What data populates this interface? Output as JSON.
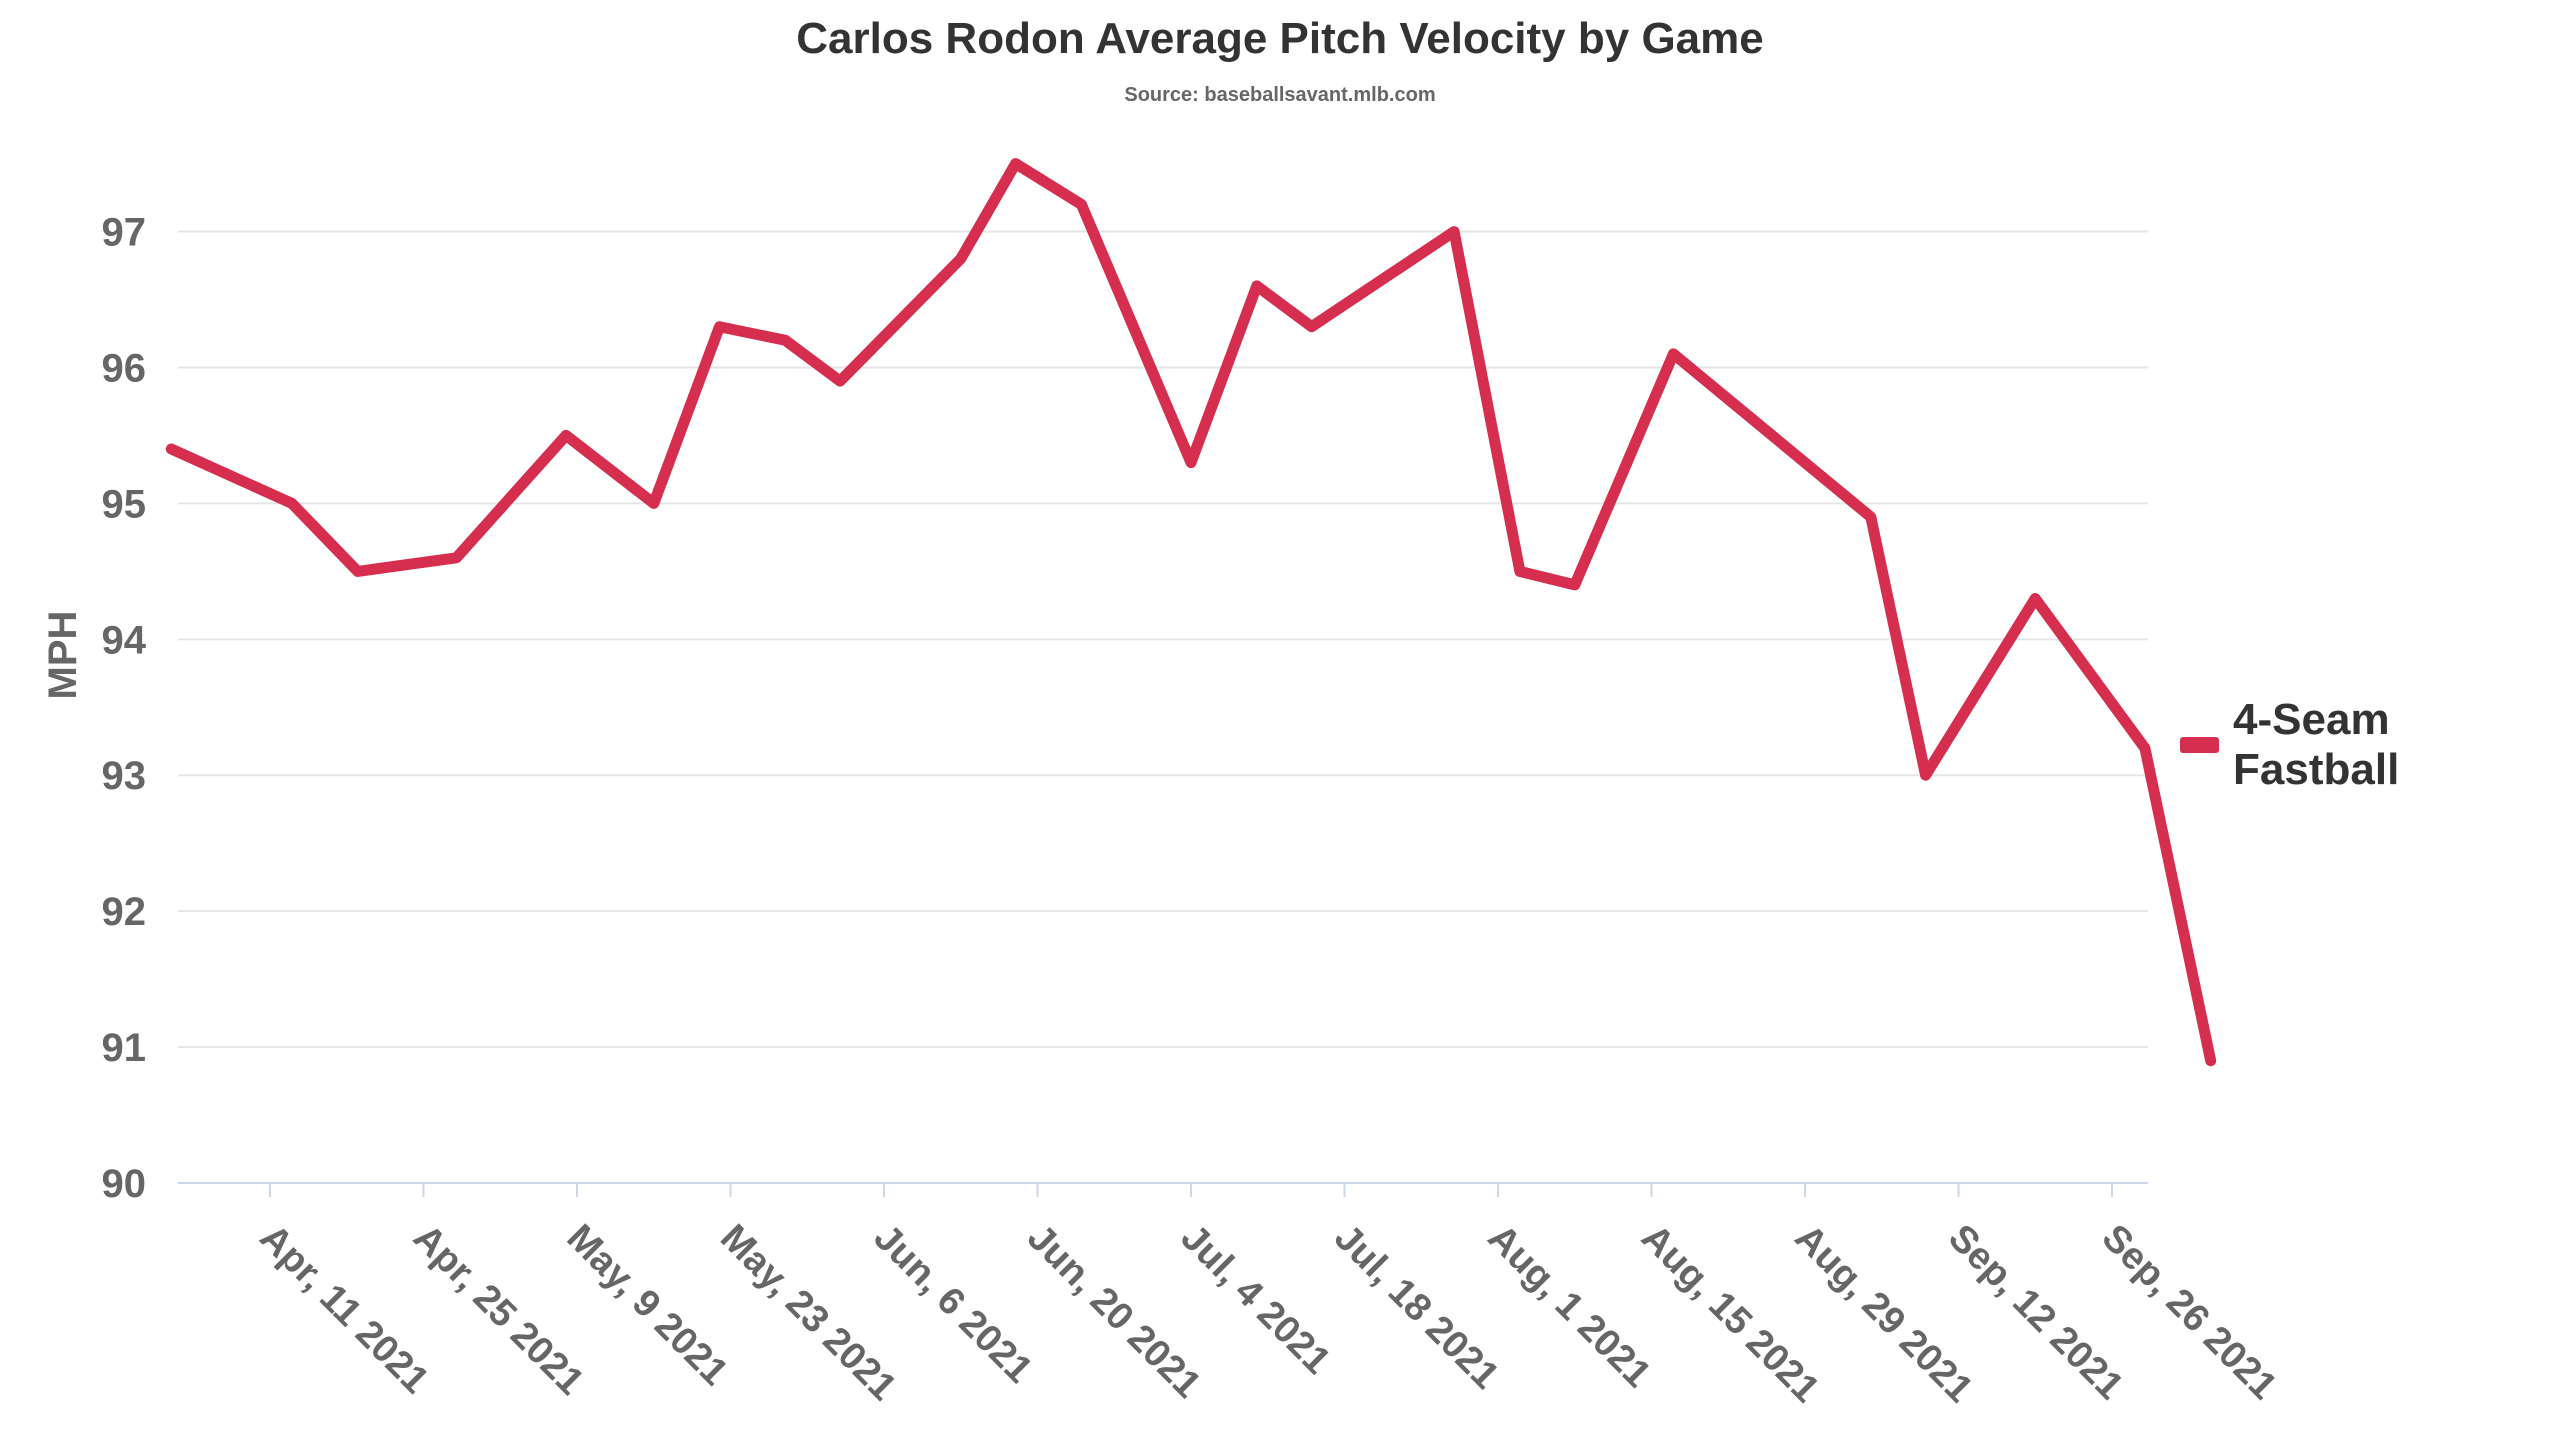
{
  "title": "Carlos Rodon Average Pitch Velocity by Game",
  "subtitle": "Source: baseballsavant.mlb.com",
  "legend": {
    "label": "4-Seam Fastball",
    "color": "#d62e4e"
  },
  "chart_data": {
    "type": "line",
    "title": "Carlos Rodon Average Pitch Velocity by Game",
    "subtitle": "Source: baseballsavant.mlb.com",
    "xlabel": "",
    "ylabel": "MPH",
    "ylim": [
      90,
      97.6
    ],
    "yticks": [
      90,
      91,
      92,
      93,
      94,
      95,
      96,
      97
    ],
    "xlim": [
      "2021-04-01",
      "2021-10-02"
    ],
    "xticks": [
      {
        "date": "2021-04-11",
        "label": "Apr, 11 2021"
      },
      {
        "date": "2021-04-25",
        "label": "Apr, 25 2021"
      },
      {
        "date": "2021-05-09",
        "label": "May, 9 2021"
      },
      {
        "date": "2021-05-23",
        "label": "May, 23 2021"
      },
      {
        "date": "2021-06-06",
        "label": "Jun, 6 2021"
      },
      {
        "date": "2021-06-20",
        "label": "Jun, 20 2021"
      },
      {
        "date": "2021-07-04",
        "label": "Jul, 4 2021"
      },
      {
        "date": "2021-07-18",
        "label": "Jul, 18 2021"
      },
      {
        "date": "2021-08-01",
        "label": "Aug, 1 2021"
      },
      {
        "date": "2021-08-15",
        "label": "Aug, 15 2021"
      },
      {
        "date": "2021-08-29",
        "label": "Aug, 29 2021"
      },
      {
        "date": "2021-09-12",
        "label": "Sep, 12 2021"
      },
      {
        "date": "2021-09-26",
        "label": "Sep, 26 2021"
      }
    ],
    "grid": true,
    "legend_position": "right",
    "series": [
      {
        "name": "4-Seam Fastball",
        "color": "#d62e4e",
        "points": [
          {
            "x": "2021-04-02",
            "y": 95.4
          },
          {
            "x": "2021-04-13",
            "y": 95.0
          },
          {
            "x": "2021-04-19",
            "y": 94.5
          },
          {
            "x": "2021-04-28",
            "y": 94.6
          },
          {
            "x": "2021-05-08",
            "y": 95.5
          },
          {
            "x": "2021-05-16",
            "y": 95.0
          },
          {
            "x": "2021-05-22",
            "y": 96.3
          },
          {
            "x": "2021-05-28",
            "y": 96.2
          },
          {
            "x": "2021-06-02",
            "y": 95.9
          },
          {
            "x": "2021-06-13",
            "y": 96.8
          },
          {
            "x": "2021-06-18",
            "y": 97.5
          },
          {
            "x": "2021-06-24",
            "y": 97.2
          },
          {
            "x": "2021-07-04",
            "y": 95.3
          },
          {
            "x": "2021-07-10",
            "y": 96.6
          },
          {
            "x": "2021-07-15",
            "y": 96.3
          },
          {
            "x": "2021-07-28",
            "y": 97.0
          },
          {
            "x": "2021-08-03",
            "y": 94.5
          },
          {
            "x": "2021-08-08",
            "y": 94.4
          },
          {
            "x": "2021-08-17",
            "y": 96.1
          },
          {
            "x": "2021-09-04",
            "y": 94.9
          },
          {
            "x": "2021-09-09",
            "y": 93.0
          },
          {
            "x": "2021-09-19",
            "y": 94.3
          },
          {
            "x": "2021-09-29",
            "y": 93.2
          },
          {
            "x": "2021-10-05",
            "y": 90.9
          }
        ]
      }
    ]
  }
}
